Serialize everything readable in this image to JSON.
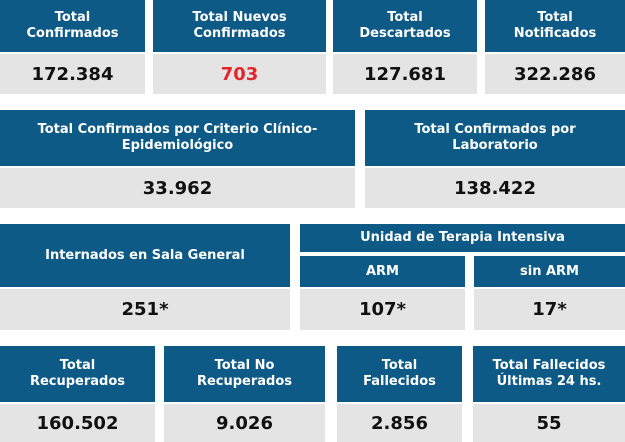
{
  "row1": {
    "confirmados": {
      "title": "Total\nConfirmados",
      "value": "172.384"
    },
    "nuevos": {
      "title": "Total Nuevos\nConfirmados",
      "value": "703"
    },
    "descartados": {
      "title": "Total\nDescartados",
      "value": "127.681"
    },
    "notificados": {
      "title": "Total\nNotificados",
      "value": "322.286"
    }
  },
  "row2": {
    "criterio": {
      "title": "Total Confirmados por Criterio Clínico-\nEpidemiológico",
      "value": "33.962"
    },
    "laboratorio": {
      "title": "Total Confirmados por\nLaboratorio",
      "value": "138.422"
    }
  },
  "row3": {
    "sala_general": {
      "title": "Internados en Sala General",
      "value": "251*"
    },
    "uti": {
      "title": "Unidad de Terapia Intensiva",
      "arm": {
        "title": "ARM",
        "value": "107*"
      },
      "sin_arm": {
        "title": "sin ARM",
        "value": "17*"
      }
    }
  },
  "row4": {
    "recuperados": {
      "title": "Total\nRecuperados",
      "value": "160.502"
    },
    "no_recuperados": {
      "title": "Total No\nRecuperados",
      "value": "9.026"
    },
    "fallecidos": {
      "title": "Total\nFallecidos",
      "value": "2.856"
    },
    "fallecidos_24": {
      "title": "Total Fallecidos\nÚltimas 24 hs.",
      "value": "55"
    }
  },
  "colors": {
    "header_blue": "#0d5a87",
    "value_gray": "#e4e4e4",
    "highlight_red": "#e3262c"
  }
}
